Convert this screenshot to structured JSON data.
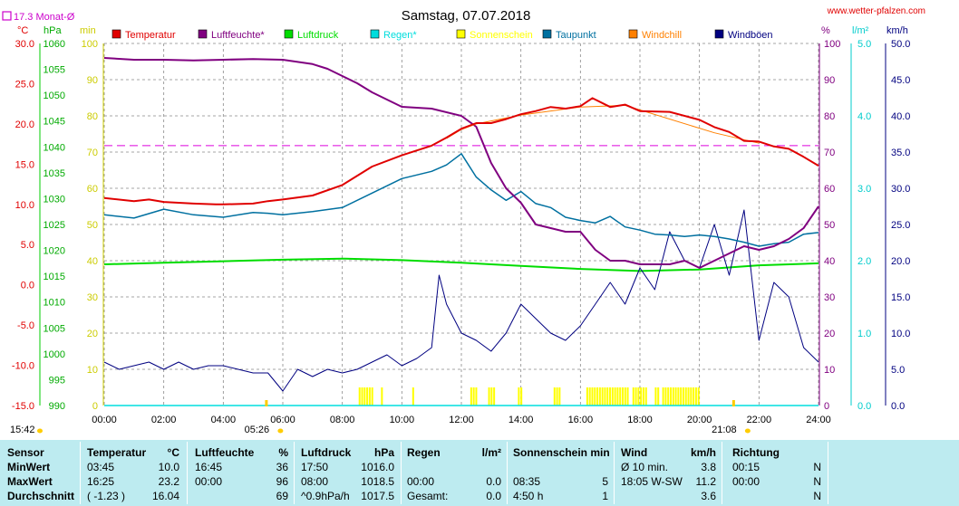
{
  "header": {
    "title": "Samstag, 07.07.2018",
    "site": "www.wetter-pfalzen.com",
    "monthly_avg_label": "17.3 Monat-Ø"
  },
  "axes": {
    "temp_unit": "°C",
    "pressure_unit": "hPa",
    "humidity_unit_left": "min",
    "humidity_unit_right": "%",
    "rain_unit": "l/m²",
    "wind_unit": "km/h",
    "temp_ticks": [
      "30.0",
      "25.0",
      "20.0",
      "15.0",
      "10.0",
      "5.0",
      "0.0",
      "-5.0",
      "-10.0",
      "-15.0"
    ],
    "pressure_ticks": [
      "1060",
      "1055",
      "1050",
      "1045",
      "1040",
      "1035",
      "1030",
      "1025",
      "1020",
      "1015",
      "1010",
      "1005",
      "1000",
      "995",
      "990"
    ],
    "percent_ticks_left": [
      "100",
      "90",
      "80",
      "70",
      "60",
      "50",
      "40",
      "30",
      "20",
      "10",
      "0"
    ],
    "percent_ticks_right": [
      "100",
      "90",
      "80",
      "70",
      "60",
      "50",
      "40",
      "30",
      "20",
      "10",
      "0"
    ],
    "rain_ticks": [
      "5.0",
      "4.0",
      "3.0",
      "2.0",
      "1.0",
      "0.0"
    ],
    "wind_ticks": [
      "50.0",
      "45.0",
      "40.0",
      "35.0",
      "30.0",
      "25.0",
      "20.0",
      "15.0",
      "10.0",
      "5.0",
      "0.0"
    ],
    "time_ticks": [
      "00:00",
      "02:00",
      "04:00",
      "06:00",
      "08:00",
      "10:00",
      "12:00",
      "14:00",
      "16:00",
      "18:00",
      "20:00",
      "22:00",
      "24:00"
    ],
    "sunrise": "05:26",
    "sunset": "21:08",
    "sunshine_left": "15:42"
  },
  "legend": [
    {
      "label": "Temperatur",
      "color": "#e00000"
    },
    {
      "label": "Luftfeuchte*",
      "color": "#800080"
    },
    {
      "label": "Luftdruck",
      "color": "#00dd00"
    },
    {
      "label": "Regen*",
      "color": "#00dddd"
    },
    {
      "label": "Sonnenschein",
      "color": "#ffff00"
    },
    {
      "label": "Taupunkt",
      "color": "#0070a0"
    },
    {
      "label": "Windchill",
      "color": "#ff8000"
    },
    {
      "label": "Windböen",
      "color": "#000080"
    }
  ],
  "chart_data": {
    "type": "line",
    "x_unit": "hours",
    "series": [
      {
        "name": "Temperatur",
        "unit": "°C",
        "x": [
          0,
          1,
          1.5,
          2,
          3,
          3.75,
          4,
          5,
          5.5,
          6,
          7,
          8,
          9,
          10,
          11,
          11.5,
          12,
          12.5,
          13,
          13.5,
          14,
          14.5,
          15,
          15.5,
          16,
          16.4,
          17,
          17.5,
          18,
          19,
          20,
          20.5,
          21,
          21.5,
          22,
          22.5,
          23,
          23.5,
          24
        ],
        "y": [
          10.8,
          10.4,
          10.6,
          10.3,
          10.1,
          10.0,
          10.0,
          10.1,
          10.4,
          10.6,
          11.1,
          12.4,
          14.7,
          16.1,
          17.3,
          18.3,
          19.4,
          20.1,
          20.1,
          20.6,
          21.2,
          21.6,
          22.1,
          21.9,
          22.2,
          23.2,
          22.1,
          22.4,
          21.6,
          21.5,
          20.5,
          19.6,
          19.0,
          17.9,
          17.8,
          17.2,
          16.9,
          15.9,
          14.8
        ]
      },
      {
        "name": "Luftfeuchte*",
        "unit": "%",
        "x": [
          0,
          1,
          2,
          3,
          4,
          5,
          5.5,
          6,
          7,
          7.5,
          8,
          8.5,
          9,
          10,
          11,
          12,
          12.5,
          13,
          13.5,
          14,
          14.5,
          15,
          15.5,
          16,
          16.5,
          17,
          17.5,
          18,
          18.5,
          19,
          19.5,
          20,
          20.5,
          21,
          21.5,
          22,
          22.5,
          23,
          23.5,
          24
        ],
        "y": [
          96,
          95.5,
          95.5,
          95.3,
          95.5,
          95.7,
          95.6,
          95.5,
          94.3,
          93,
          91,
          89,
          86.5,
          82.5,
          82,
          80,
          77,
          67,
          60,
          56,
          50,
          49,
          48,
          48,
          43,
          40,
          40,
          39,
          39,
          39,
          40,
          38,
          40,
          42,
          44,
          43,
          44,
          46,
          49,
          55
        ]
      },
      {
        "name": "Luftdruck",
        "unit": "hPa",
        "x": [
          0,
          2,
          4,
          6,
          8,
          10,
          12,
          14,
          16,
          18,
          20,
          22,
          24
        ],
        "y": [
          1017.3,
          1017.6,
          1017.9,
          1018.2,
          1018.4,
          1018.1,
          1017.6,
          1017.0,
          1016.4,
          1016.0,
          1016.3,
          1017.1,
          1017.5
        ]
      },
      {
        "name": "Taupunkt",
        "unit": "°C",
        "x": [
          0,
          1,
          2,
          3,
          4,
          5,
          5.5,
          6,
          7,
          8,
          9,
          10,
          11,
          11.5,
          12,
          12.5,
          13,
          13.5,
          14,
          14.5,
          15,
          15.5,
          16,
          16.5,
          17,
          17.5,
          18,
          18.5,
          19,
          19.5,
          20,
          20.5,
          21,
          21.5,
          22,
          22.5,
          23,
          23.5,
          24
        ],
        "y": [
          8.7,
          8.3,
          9.4,
          8.7,
          8.4,
          9.0,
          8.9,
          8.7,
          9.1,
          9.6,
          11.4,
          13.2,
          14.1,
          14.9,
          16.3,
          13.4,
          11.8,
          10.5,
          11.6,
          10.1,
          9.6,
          8.4,
          8.0,
          7.7,
          8.5,
          7.2,
          6.8,
          6.3,
          6.2,
          6.0,
          6.2,
          6.0,
          5.7,
          5.3,
          4.8,
          5.1,
          5.3,
          6.3,
          6.5
        ]
      },
      {
        "name": "Windböen",
        "unit": "km/h",
        "x": [
          0,
          0.5,
          1,
          1.5,
          2,
          2.5,
          3,
          3.5,
          4,
          4.5,
          5,
          5.5,
          6,
          6.5,
          7,
          7.5,
          8,
          8.5,
          9,
          9.5,
          10,
          10.5,
          11,
          11.25,
          11.5,
          12,
          12.5,
          13,
          13.5,
          14,
          14.5,
          15,
          15.5,
          16,
          16.5,
          17,
          17.5,
          18,
          18.5,
          19,
          19.5,
          20,
          20.5,
          21,
          21.5,
          22,
          22.5,
          23,
          23.5,
          24
        ],
        "y": [
          6,
          5,
          5.5,
          6,
          5,
          6,
          5,
          5.5,
          5.5,
          5,
          4.5,
          4.5,
          2,
          5,
          4,
          5,
          4.5,
          5,
          6,
          7,
          5.5,
          6.5,
          8,
          18,
          14,
          10,
          9,
          7.5,
          10,
          14,
          12,
          10,
          9,
          11,
          14,
          17,
          14,
          19,
          16,
          24,
          20,
          19,
          25,
          18,
          27,
          9,
          17,
          15,
          8,
          6
        ]
      },
      {
        "name": "Windchill",
        "unit": "°C",
        "x": [
          11.5,
          12,
          12.5,
          14,
          16,
          17.5,
          20.5,
          22
        ],
        "y": [
          18.2,
          19.3,
          20.0,
          21.1,
          22.1,
          22.3,
          18.9,
          17.6
        ]
      },
      {
        "name": "Regen*",
        "unit": "l/m²",
        "x": [
          0,
          24
        ],
        "y": [
          0,
          0
        ]
      }
    ],
    "sunshine_intervals": [
      [
        8.55,
        9.05
      ],
      [
        9.3,
        9.35
      ],
      [
        10.35,
        10.4
      ],
      [
        12.3,
        12.5
      ],
      [
        12.9,
        13.1
      ],
      [
        13.9,
        14.05
      ],
      [
        15.1,
        15.3
      ],
      [
        16.2,
        17.6
      ],
      [
        17.75,
        18.25
      ],
      [
        18.5,
        18.6
      ],
      [
        18.75,
        20.0
      ]
    ],
    "reference_line_temp": 17.3
  },
  "table": {
    "row_labels": [
      "Sensor",
      "MinWert",
      "MaxWert",
      "Durchschnitt"
    ],
    "columns": [
      {
        "hdr": "Temperatur",
        "unit": "°C",
        "rows": [
          [
            "03:45",
            "10.0"
          ],
          [
            "16:25",
            "23.2"
          ],
          [
            "( -1.23 )",
            "16.04"
          ]
        ]
      },
      {
        "hdr": "Luftfeuchte",
        "unit": "%",
        "rows": [
          [
            "16:45",
            "36"
          ],
          [
            "00:00",
            "96"
          ],
          [
            "",
            "69"
          ]
        ]
      },
      {
        "hdr": "Luftdruck",
        "unit": "hPa",
        "rows": [
          [
            "17:50",
            "1016.0"
          ],
          [
            "08:00",
            "1018.5"
          ],
          [
            "^0.9hPa/h",
            "1017.5"
          ]
        ]
      },
      {
        "hdr": "Regen",
        "unit": "l/m²",
        "rows": [
          [
            "",
            ""
          ],
          [
            "00:00",
            "0.0"
          ],
          [
            "Gesamt:",
            "0.0"
          ]
        ]
      },
      {
        "hdr": "Sonnenschein min",
        "unit": "",
        "rows": [
          [
            "",
            ""
          ],
          [
            "08:35",
            "5"
          ],
          [
            "4:50 h",
            "1"
          ]
        ]
      },
      {
        "hdr": "Wind",
        "unit": "km/h",
        "rows": [
          [
            "Ø 10 min.",
            "3.8"
          ],
          [
            "18:05   W-SW",
            "11.2"
          ],
          [
            "",
            "3.6"
          ]
        ]
      },
      {
        "hdr": "Richtung",
        "unit": "",
        "rows": [
          [
            "00:15",
            "N"
          ],
          [
            "00:00",
            "N"
          ],
          [
            "",
            "N"
          ]
        ]
      }
    ]
  }
}
